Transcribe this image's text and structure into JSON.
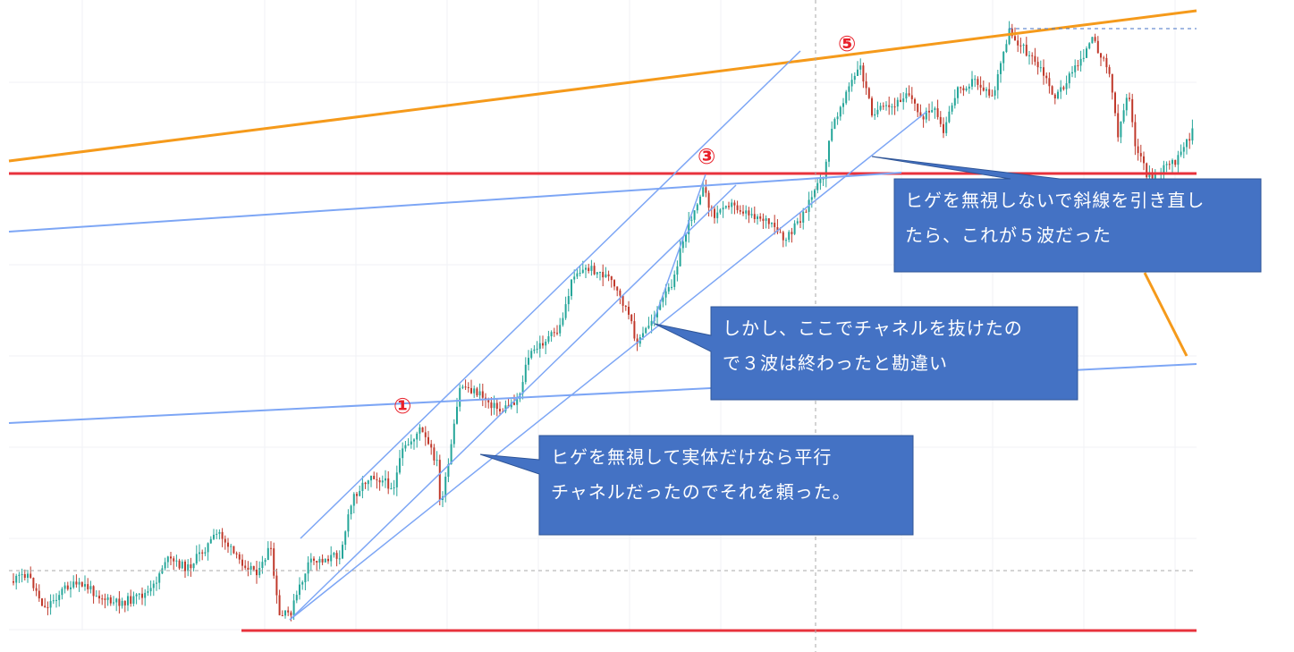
{
  "chart_data": {
    "type": "candlestick",
    "title": "",
    "xlabel": "",
    "ylabel": "",
    "grid": true,
    "colors": {
      "up": "#26a69a",
      "down": "#c0392b",
      "orange_line": "#f59a1b",
      "red_line": "#e8323c",
      "blue_line": "#7da6f5",
      "callout_fill": "#4472c4",
      "callout_border": "#2f5597",
      "marker": "#e8202a"
    },
    "wave_labels": [
      "①",
      "③",
      "⑤"
    ],
    "price_path": [
      [
        15,
        650
      ],
      [
        30,
        640
      ],
      [
        50,
        680
      ],
      [
        75,
        655
      ],
      [
        95,
        655
      ],
      [
        125,
        675
      ],
      [
        150,
        670
      ],
      [
        170,
        660
      ],
      [
        185,
        625
      ],
      [
        210,
        635
      ],
      [
        245,
        595
      ],
      [
        265,
        625
      ],
      [
        290,
        640
      ],
      [
        302,
        610
      ],
      [
        312,
        690
      ],
      [
        325,
        685
      ],
      [
        345,
        630
      ],
      [
        380,
        620
      ],
      [
        395,
        555
      ],
      [
        415,
        530
      ],
      [
        440,
        545
      ],
      [
        450,
        505
      ],
      [
        470,
        480
      ],
      [
        490,
        520
      ],
      [
        492,
        565
      ],
      [
        500,
        530
      ],
      [
        515,
        430
      ],
      [
        535,
        440
      ],
      [
        560,
        460
      ],
      [
        580,
        445
      ],
      [
        590,
        400
      ],
      [
        610,
        380
      ],
      [
        625,
        370
      ],
      [
        642,
        305
      ],
      [
        660,
        300
      ],
      [
        680,
        310
      ],
      [
        700,
        345
      ],
      [
        713,
        385
      ],
      [
        730,
        355
      ],
      [
        750,
        320
      ],
      [
        765,
        265
      ],
      [
        785,
        210
      ],
      [
        800,
        245
      ],
      [
        810,
        225
      ],
      [
        830,
        235
      ],
      [
        855,
        245
      ],
      [
        878,
        270
      ],
      [
        895,
        245
      ],
      [
        910,
        215
      ],
      [
        920,
        200
      ],
      [
        930,
        145
      ],
      [
        945,
        105
      ],
      [
        962,
        75
      ],
      [
        975,
        125
      ],
      [
        1000,
        120
      ],
      [
        1015,
        100
      ],
      [
        1028,
        130
      ],
      [
        1045,
        125
      ],
      [
        1055,
        150
      ],
      [
        1070,
        100
      ],
      [
        1090,
        90
      ],
      [
        1110,
        110
      ],
      [
        1128,
        35
      ],
      [
        1145,
        55
      ],
      [
        1165,
        80
      ],
      [
        1180,
        110
      ],
      [
        1200,
        80
      ],
      [
        1222,
        45
      ],
      [
        1240,
        75
      ],
      [
        1250,
        150
      ],
      [
        1262,
        100
      ],
      [
        1270,
        165
      ],
      [
        1285,
        200
      ],
      [
        1300,
        190
      ],
      [
        1320,
        175
      ],
      [
        1336,
        140
      ]
    ]
  },
  "callouts": [
    {
      "text": "ヒゲを無視しないで斜線を引き直し\nたら、これが５波だった"
    },
    {
      "text": "しかし、ここでチャネルを抜けたの\nで３波は終わったと勘違い"
    },
    {
      "text": "ヒゲを無視して実体だけなら平行\nチャネルだったのでそれを頼った。"
    }
  ]
}
